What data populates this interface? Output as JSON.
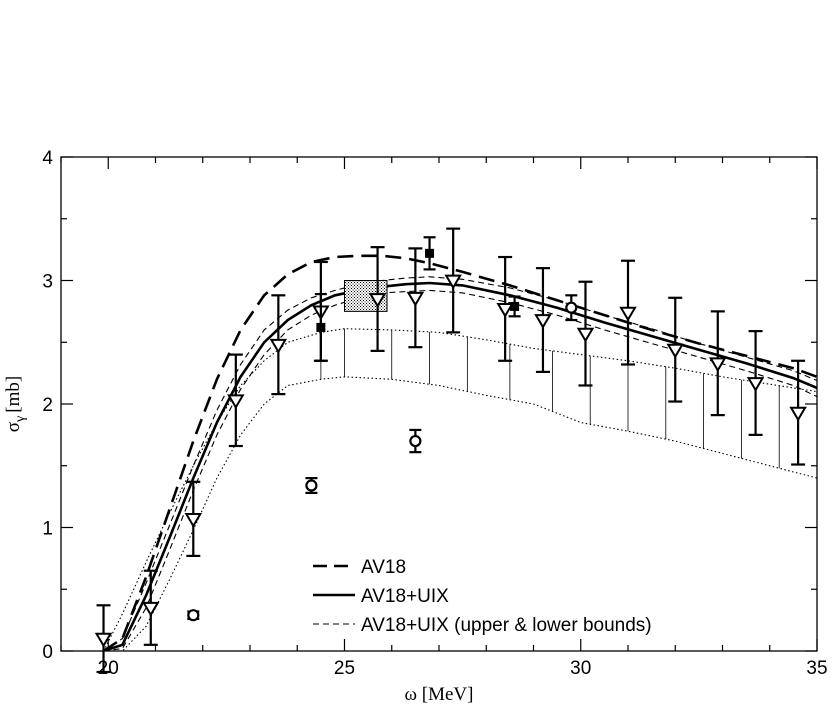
{
  "chart_data": {
    "type": "line",
    "xlabel": "ω [MeV]",
    "ylabel_base": "σ",
    "ylabel_sub": "γ",
    "ylabel_unit": "[mb]",
    "xlim": [
      19,
      35
    ],
    "ylim": [
      0,
      4
    ],
    "x_ticks": [
      20,
      25,
      30,
      35
    ],
    "y_ticks": [
      0,
      1,
      2,
      3,
      4
    ],
    "grid": false,
    "legend_position": "bottom-center",
    "legend": [
      {
        "label": "AV18",
        "style": "long-dash"
      },
      {
        "label": "AV18+UIX",
        "style": "solid"
      },
      {
        "label": "AV18+UIX (upper & lower bounds)",
        "style": "short-dash"
      }
    ],
    "series": [
      {
        "name": "AV18",
        "style": "long-dash",
        "x": [
          19.9,
          20.3,
          20.8,
          21.3,
          21.8,
          22.3,
          22.8,
          23.3,
          23.8,
          24.3,
          24.8,
          25.3,
          25.8,
          26.3,
          26.8,
          27.5,
          28.5,
          29.5,
          30.5,
          31.5,
          32.5,
          33.5,
          34.5,
          35
        ],
        "y": [
          0.0,
          0.1,
          0.6,
          1.15,
          1.7,
          2.2,
          2.6,
          2.88,
          3.05,
          3.15,
          3.19,
          3.2,
          3.2,
          3.18,
          3.14,
          3.07,
          2.96,
          2.84,
          2.72,
          2.6,
          2.49,
          2.39,
          2.29,
          2.22
        ]
      },
      {
        "name": "AV18+UIX",
        "style": "solid",
        "x": [
          19.9,
          20.3,
          20.8,
          21.3,
          21.8,
          22.3,
          22.8,
          23.3,
          23.8,
          24.3,
          24.8,
          25.3,
          25.8,
          26.3,
          26.8,
          27.5,
          28.5,
          29.5,
          30.5,
          31.5,
          32.5,
          33.5,
          34.5,
          35
        ],
        "y": [
          0.0,
          0.05,
          0.45,
          0.92,
          1.4,
          1.85,
          2.22,
          2.5,
          2.68,
          2.8,
          2.88,
          2.92,
          2.95,
          2.97,
          2.98,
          2.96,
          2.88,
          2.78,
          2.66,
          2.55,
          2.44,
          2.33,
          2.21,
          2.13
        ]
      },
      {
        "name": "AV18+UIX upper bound",
        "style": "short-dash",
        "x": [
          19.9,
          20.3,
          20.8,
          21.3,
          21.8,
          22.3,
          22.8,
          23.3,
          23.8,
          24.3,
          24.8,
          25.3,
          25.8,
          26.3,
          26.8,
          27.5,
          28.5,
          29.5,
          30.5,
          31.5,
          32.5,
          33.5,
          34.5,
          35
        ],
        "y": [
          0.0,
          0.1,
          0.55,
          1.02,
          1.5,
          1.95,
          2.32,
          2.6,
          2.76,
          2.86,
          2.92,
          2.97,
          3.0,
          3.02,
          3.03,
          3.01,
          2.94,
          2.84,
          2.72,
          2.61,
          2.49,
          2.38,
          2.27,
          2.19
        ]
      },
      {
        "name": "AV18+UIX lower bound",
        "style": "short-dash",
        "x": [
          19.9,
          20.3,
          20.8,
          21.3,
          21.8,
          22.3,
          22.8,
          23.3,
          23.8,
          24.3,
          24.8,
          25.3,
          25.8,
          26.3,
          26.8,
          27.5,
          28.5,
          29.5,
          30.5,
          31.5,
          32.5,
          33.5,
          34.5,
          35
        ],
        "y": [
          0.0,
          0.02,
          0.35,
          0.82,
          1.3,
          1.75,
          2.12,
          2.4,
          2.6,
          2.72,
          2.8,
          2.86,
          2.9,
          2.91,
          2.92,
          2.9,
          2.82,
          2.72,
          2.6,
          2.49,
          2.38,
          2.27,
          2.15,
          2.06
        ]
      },
      {
        "name": "band upper",
        "style": "dotted",
        "x": [
          19.9,
          20.3,
          20.8,
          21.3,
          21.8,
          22.3,
          22.8,
          23.3,
          23.8,
          24.5,
          25.0,
          26.0,
          27.0,
          28.0,
          29.0,
          30.0,
          31.0,
          32.0,
          33.0,
          34.0,
          35.0
        ],
        "y": [
          0.0,
          0.3,
          0.72,
          1.12,
          1.5,
          1.85,
          2.15,
          2.35,
          2.5,
          2.58,
          2.61,
          2.6,
          2.58,
          2.52,
          2.45,
          2.4,
          2.35,
          2.29,
          2.22,
          2.16,
          2.1
        ]
      },
      {
        "name": "band lower",
        "style": "dotted",
        "x": [
          19.9,
          20.3,
          20.8,
          21.3,
          21.8,
          22.3,
          22.8,
          23.3,
          23.8,
          24.5,
          25.0,
          26.0,
          27.0,
          28.0,
          29.0,
          30.0,
          31.0,
          32.0,
          33.0,
          34.0,
          35.0
        ],
        "y": [
          0.0,
          0.0,
          0.2,
          0.58,
          0.98,
          1.4,
          1.75,
          2.0,
          2.15,
          2.2,
          2.22,
          2.2,
          2.15,
          2.07,
          2.0,
          1.85,
          1.78,
          1.7,
          1.6,
          1.5,
          1.4
        ]
      }
    ],
    "band_hatch_x": [
      24.5,
      25.0,
      26.0,
      26.8,
      27.6,
      28.5,
      29.4,
      30.2,
      31.0,
      31.8,
      32.6,
      33.4,
      34.2
    ],
    "box": {
      "x": [
        25.0,
        25.9
      ],
      "y": [
        2.75,
        3.0
      ]
    },
    "triangles": [
      {
        "x": 19.9,
        "y": 0.1,
        "err": 0.27
      },
      {
        "x": 20.9,
        "y": 0.35,
        "err": 0.3
      },
      {
        "x": 21.8,
        "y": 1.07,
        "err": 0.3
      },
      {
        "x": 22.7,
        "y": 2.03,
        "err": 0.37
      },
      {
        "x": 23.6,
        "y": 2.48,
        "err": 0.4
      },
      {
        "x": 24.5,
        "y": 2.75,
        "err": 0.4
      },
      {
        "x": 25.7,
        "y": 2.85,
        "err": 0.42
      },
      {
        "x": 26.5,
        "y": 2.86,
        "err": 0.4
      },
      {
        "x": 27.3,
        "y": 3.0,
        "err": 0.42
      },
      {
        "x": 28.4,
        "y": 2.77,
        "err": 0.42
      },
      {
        "x": 29.2,
        "y": 2.68,
        "err": 0.42
      },
      {
        "x": 30.1,
        "y": 2.57,
        "err": 0.42
      },
      {
        "x": 31.0,
        "y": 2.74,
        "err": 0.42
      },
      {
        "x": 32.0,
        "y": 2.44,
        "err": 0.42
      },
      {
        "x": 32.9,
        "y": 2.33,
        "err": 0.42
      },
      {
        "x": 33.7,
        "y": 2.17,
        "err": 0.42
      },
      {
        "x": 34.6,
        "y": 1.93,
        "err": 0.42
      }
    ],
    "circles": [
      {
        "x": 21.8,
        "y": 0.29,
        "err": 0.03
      },
      {
        "x": 24.3,
        "y": 1.34,
        "err": 0.06
      },
      {
        "x": 26.5,
        "y": 1.7,
        "err": 0.09
      },
      {
        "x": 29.8,
        "y": 2.78,
        "err": 0.1
      }
    ],
    "squares": [
      {
        "x": 24.5,
        "y": 2.62,
        "err": 0.27
      },
      {
        "x": 26.8,
        "y": 3.22,
        "err": 0.13
      },
      {
        "x": 28.6,
        "y": 2.79,
        "err": 0.08
      }
    ]
  }
}
